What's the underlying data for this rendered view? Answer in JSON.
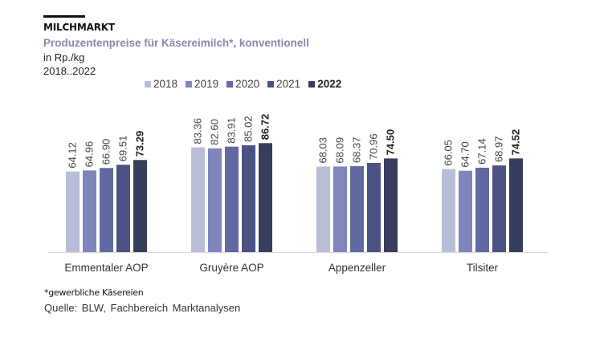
{
  "header": {
    "section": "MILCHMARKT",
    "title": "Produzentenpreise für Käsereimilch*,  konventionell",
    "unit": "in Rp./kg",
    "period": "2018..2022"
  },
  "footer": {
    "footnote": "*gewerbliche Käsereien",
    "source": "Quelle:  BLW, Fachbereich  Marktanalysen"
  },
  "chart_data": {
    "type": "bar",
    "title": "Produzentenpreise für Käsereimilch*, konventionell",
    "xlabel": "",
    "ylabel": "in Rp./kg",
    "ylim": [
      0,
      100
    ],
    "grid": false,
    "legend_position": "top",
    "categories": [
      "Emmentaler AOP",
      "Gruyère AOP",
      "Appenzeller",
      "Tilsiter"
    ],
    "series": [
      {
        "name": "2018",
        "color": "#B8BED8",
        "bold": false,
        "values": [
          64.12,
          83.36,
          68.03,
          66.05
        ]
      },
      {
        "name": "2019",
        "color": "#7E86BC",
        "bold": false,
        "values": [
          64.96,
          82.6,
          68.09,
          64.7
        ]
      },
      {
        "name": "2020",
        "color": "#6169A3",
        "bold": false,
        "values": [
          66.9,
          83.91,
          68.37,
          67.14
        ]
      },
      {
        "name": "2021",
        "color": "#4C5283",
        "bold": false,
        "values": [
          69.51,
          85.02,
          70.96,
          68.97
        ]
      },
      {
        "name": "2022",
        "color": "#373D5C",
        "bold": true,
        "values": [
          73.29,
          86.72,
          74.5,
          74.52
        ]
      }
    ]
  }
}
